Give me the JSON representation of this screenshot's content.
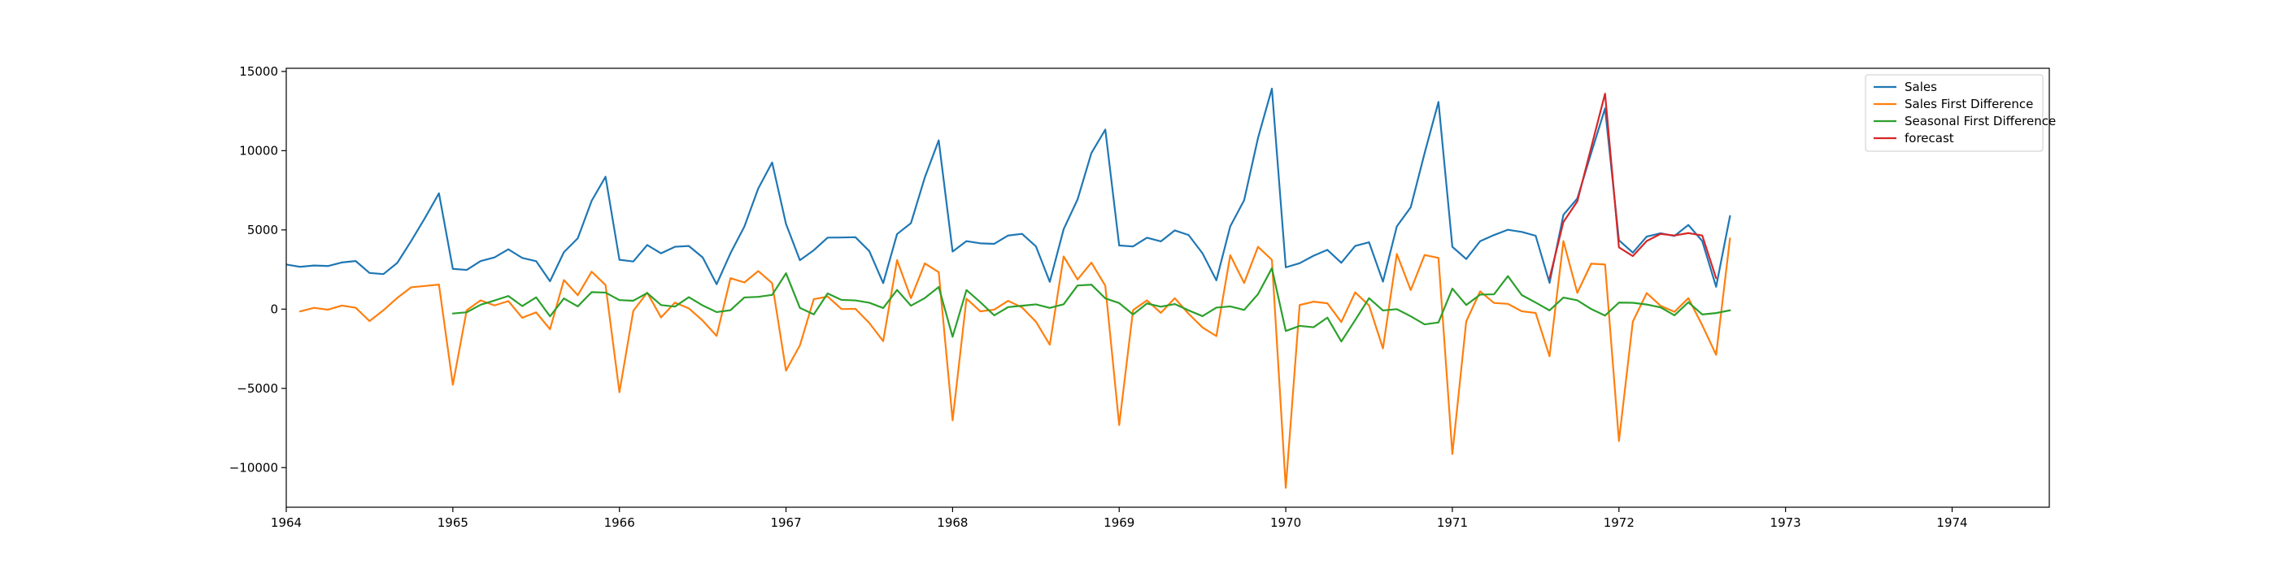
{
  "chart_data": {
    "type": "line",
    "title": "",
    "xlabel": "",
    "ylabel": "",
    "xlim": [
      "1964-01",
      "1974-08"
    ],
    "ylim": [
      -12500,
      15200
    ],
    "grid": false,
    "legend_position": "top-right",
    "x_ticks": [
      "1964",
      "1965",
      "1966",
      "1967",
      "1968",
      "1969",
      "1970",
      "1971",
      "1972",
      "1973",
      "1974"
    ],
    "y_ticks": [
      {
        "value": -10000,
        "label": "−10000"
      },
      {
        "value": -5000,
        "label": "−5000"
      },
      {
        "value": 0,
        "label": "0"
      },
      {
        "value": 5000,
        "label": "5000"
      },
      {
        "value": 10000,
        "label": "10000"
      },
      {
        "value": 15000,
        "label": "15000"
      }
    ],
    "series": [
      {
        "name": "Sales",
        "color": "#1f77b4",
        "start": "1964-01",
        "values": [
          2815,
          2672,
          2755,
          2721,
          2946,
          3036,
          2282,
          2212,
          2922,
          4301,
          5764,
          7312,
          2541,
          2475,
          3031,
          3266,
          3776,
          3230,
          3028,
          1759,
          3595,
          4474,
          6838,
          8357,
          3113,
          3006,
          4047,
          3523,
          3937,
          3986,
          3260,
          1573,
          3528,
          5211,
          7614,
          9254,
          5375,
          3088,
          3718,
          4514,
          4520,
          4539,
          3663,
          1643,
          4739,
          5428,
          8314,
          10651,
          3633,
          4292,
          4154,
          4121,
          4647,
          4753,
          3965,
          1723,
          5048,
          6922,
          9858,
          11331,
          4016,
          3957,
          4510,
          4276,
          4968,
          4677,
          3523,
          1821,
          5222,
          6872,
          10803,
          13916,
          2639,
          2899,
          3370,
          3740,
          2927,
          3986,
          4217,
          1738,
          5221,
          6424,
          9842,
          13076,
          3934,
          3162,
          4286,
          4676,
          5010,
          4874,
          4633,
          1659,
          5951,
          6981,
          9851,
          12670,
          4348,
          3564,
          4577,
          4788,
          4618,
          5312,
          4298,
          1413,
          5877
        ]
      },
      {
        "name": "Sales First Difference",
        "color": "#ff7f0e",
        "start": "1964-02",
        "values": [
          -143,
          83,
          -34,
          225,
          90,
          -754,
          -70,
          710,
          1379,
          1463,
          1548,
          -4771,
          -66,
          556,
          235,
          510,
          -546,
          -202,
          -1269,
          1836,
          879,
          2364,
          1519,
          -5244,
          -107,
          1041,
          -524,
          414,
          49,
          -726,
          -1687,
          1955,
          1683,
          2403,
          1640,
          -3879,
          -2287,
          630,
          796,
          6,
          19,
          -876,
          -2020,
          3096,
          689,
          2886,
          2337,
          -7018,
          659,
          -138,
          -33,
          526,
          106,
          -788,
          -2242,
          3325,
          1874,
          2936,
          1473,
          -7315,
          -59,
          553,
          -234,
          692,
          -291,
          -1154,
          -1702,
          3401,
          1650,
          3931,
          3113,
          -11277,
          260,
          471,
          370,
          -813,
          1059,
          231,
          -2479,
          3483,
          1203,
          3418,
          3234,
          -9142,
          -772,
          1124,
          390,
          334,
          -136,
          -241,
          -2974,
          4292,
          1030,
          2870,
          2819,
          -8322,
          -784,
          1013,
          211,
          -170,
          694,
          -1014,
          -2885,
          4464
        ]
      },
      {
        "name": "Seasonal First Difference",
        "color": "#2ca02c",
        "start": "1965-01",
        "values": [
          -274,
          -197,
          276,
          545,
          830,
          194,
          746,
          -453,
          673,
          173,
          1074,
          1045,
          572,
          531,
          1016,
          257,
          161,
          756,
          232,
          -186,
          -67,
          737,
          776,
          897,
          2262,
          82,
          -329,
          991,
          583,
          553,
          403,
          70,
          1211,
          217,
          700,
          1397,
          -1742,
          1204,
          436,
          -393,
          127,
          214,
          302,
          80,
          309,
          1494,
          1544,
          680,
          383,
          -335,
          356,
          155,
          321,
          -76,
          -442,
          98,
          174,
          -50,
          945,
          2585,
          -1377,
          -1058,
          -1140,
          -536,
          -2041,
          -691,
          694,
          -83,
          -1,
          -448,
          -961,
          -840,
          1295,
          263,
          916,
          936,
          2083,
          888,
          416,
          -79,
          730,
          557,
          9,
          -406,
          414,
          402,
          291,
          112,
          -392,
          438,
          -335,
          -246,
          -74
        ]
      },
      {
        "name": "forecast",
        "color": "#d62728",
        "start": "1971-08",
        "values": [
          1950,
          5500,
          6800,
          10200,
          13600,
          3900,
          3350,
          4300,
          4750,
          4650,
          4800,
          4650,
          1950
        ]
      }
    ]
  }
}
